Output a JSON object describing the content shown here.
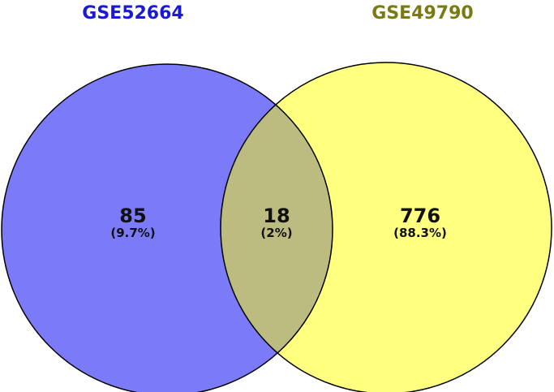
{
  "sets": [
    {
      "name": "GSE52664",
      "title_color": "#1a1ad6",
      "fill_color": "#7b7bfa",
      "unique_count": "85",
      "unique_percent": "(9.7%)"
    },
    {
      "name": "GSE49790",
      "title_color": "#7a7a14",
      "fill_color": "#ffff80",
      "unique_count": "776",
      "unique_percent": "(88.3%)"
    }
  ],
  "overlap": {
    "count": "18",
    "percent": "(2%)",
    "fill_color": "#bcbc80"
  },
  "outline_color": "#000000"
}
